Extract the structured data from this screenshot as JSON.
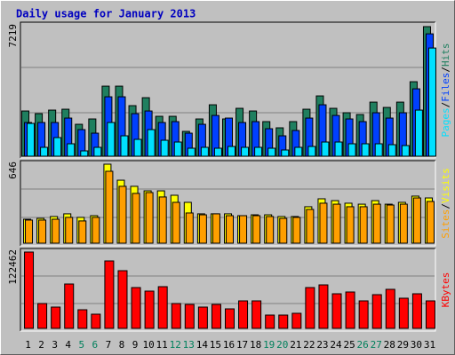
{
  "title": "Daily usage for January 2013",
  "legend_separator": "/",
  "chart_data": [
    {
      "type": "bar",
      "categories": [
        "1",
        "2",
        "3",
        "4",
        "5",
        "6",
        "7",
        "8",
        "9",
        "10",
        "11",
        "12",
        "13",
        "14",
        "15",
        "16",
        "17",
        "18",
        "19",
        "20",
        "21",
        "22",
        "23",
        "24",
        "25",
        "26",
        "27",
        "28",
        "29",
        "30",
        "31"
      ],
      "category_colors": [
        "#000000",
        "#000000",
        "#000000",
        "#000000",
        "#00805c",
        "#00805c",
        "#000000",
        "#000000",
        "#000000",
        "#000000",
        "#000000",
        "#00805c",
        "#00805c",
        "#000000",
        "#000000",
        "#000000",
        "#000000",
        "#000000",
        "#00805c",
        "#00805c",
        "#000000",
        "#000000",
        "#000000",
        "#000000",
        "#000000",
        "#00805c",
        "#00805c",
        "#000000",
        "#000000",
        "#000000",
        "#000000"
      ],
      "ylim": [
        0,
        7219
      ],
      "yticks": [
        7219
      ],
      "series": [
        {
          "name": "Hits",
          "color": "#1f7f5f",
          "values": [
            2519,
            2371,
            2569,
            2618,
            1778,
            2075,
            3903,
            3903,
            2816,
            3260,
            2223,
            2223,
            1383,
            2075,
            2865,
            2075,
            2668,
            2519,
            1927,
            1581,
            1927,
            2618,
            3359,
            2668,
            2421,
            2322,
            3013,
            2717,
            3013,
            4150,
            7219
          ]
        },
        {
          "name": "Files",
          "color": "#0040ff",
          "values": [
            1877,
            1877,
            1877,
            2124,
            1482,
            1284,
            3310,
            3310,
            2371,
            2519,
            1877,
            1927,
            1284,
            1778,
            2272,
            2124,
            1877,
            1927,
            1531,
            1136,
            1433,
            2124,
            2865,
            2272,
            2075,
            1927,
            2421,
            2124,
            2421,
            3754,
            6817
          ]
        },
        {
          "name": "Pages",
          "color": "#00e0ff",
          "values": [
            1828,
            494,
            1037,
            692,
            296,
            494,
            1877,
            1136,
            939,
            1482,
            889,
            790,
            445,
            494,
            445,
            543,
            494,
            494,
            445,
            346,
            494,
            543,
            790,
            790,
            692,
            692,
            692,
            642,
            593,
            2569,
            6027
          ]
        }
      ]
    },
    {
      "type": "bar",
      "ylim": [
        0,
        646
      ],
      "yticks": [
        646
      ],
      "series": [
        {
          "name": "Visits",
          "color": "#ffff00",
          "values": [
            196,
            203,
            218,
            240,
            211,
            225,
            646,
            515,
            465,
            428,
            428,
            392,
            334,
            240,
            240,
            240,
            225,
            232,
            232,
            218,
            218,
            298,
            363,
            348,
            327,
            319,
            348,
            319,
            334,
            385,
            370
          ]
        },
        {
          "name": "Sites",
          "color": "#ff9f00",
          "values": [
            189,
            189,
            196,
            211,
            182,
            211,
            588,
            465,
            407,
            414,
            378,
            334,
            247,
            232,
            240,
            225,
            225,
            225,
            218,
            203,
            211,
            276,
            327,
            319,
            298,
            298,
            319,
            312,
            319,
            370,
            341
          ]
        }
      ]
    },
    {
      "type": "bar",
      "ylim": [
        0,
        122462
      ],
      "yticks": [
        122462
      ],
      "series": [
        {
          "name": "KBytes",
          "color": "#ff0000",
          "values": [
            122462,
            39872,
            34176,
            71200,
            29904,
            22784,
            108224,
            92560,
            65504,
            59808,
            66928,
            39872,
            38448,
            34176,
            38448,
            31328,
            44144,
            44144,
            21360,
            21360,
            24208,
            65504,
            69776,
            55536,
            58384,
            44144,
            54112,
            62656,
            48416,
            55536,
            44144
          ]
        }
      ]
    }
  ]
}
